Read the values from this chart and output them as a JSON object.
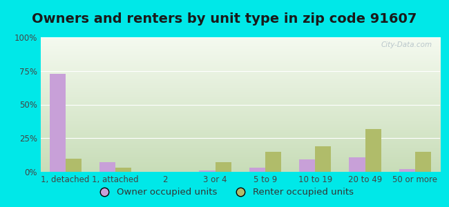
{
  "title": "Owners and renters by unit type in zip code 91607",
  "categories": [
    "1, detached",
    "1, attached",
    "2",
    "3 or 4",
    "5 to 9",
    "10 to 19",
    "20 to 49",
    "50 or more"
  ],
  "owner_values": [
    73,
    7,
    0,
    1,
    3,
    9,
    11,
    2
  ],
  "renter_values": [
    10,
    3,
    0,
    7,
    15,
    19,
    32,
    15
  ],
  "owner_color": "#c8a0d8",
  "renter_color": "#b0bc6a",
  "background_outer": "#00e8e8",
  "ylim": [
    0,
    100
  ],
  "yticks": [
    0,
    25,
    50,
    75,
    100
  ],
  "ytick_labels": [
    "0%",
    "25%",
    "50%",
    "75%",
    "100%"
  ],
  "title_fontsize": 14,
  "tick_fontsize": 8.5,
  "legend_fontsize": 9.5,
  "bar_width": 0.32,
  "watermark_text": "City-Data.com",
  "legend_owner": "Owner occupied units",
  "legend_renter": "Renter occupied units",
  "grad_top": "#f5faf0",
  "grad_bottom": "#c8ddb8"
}
